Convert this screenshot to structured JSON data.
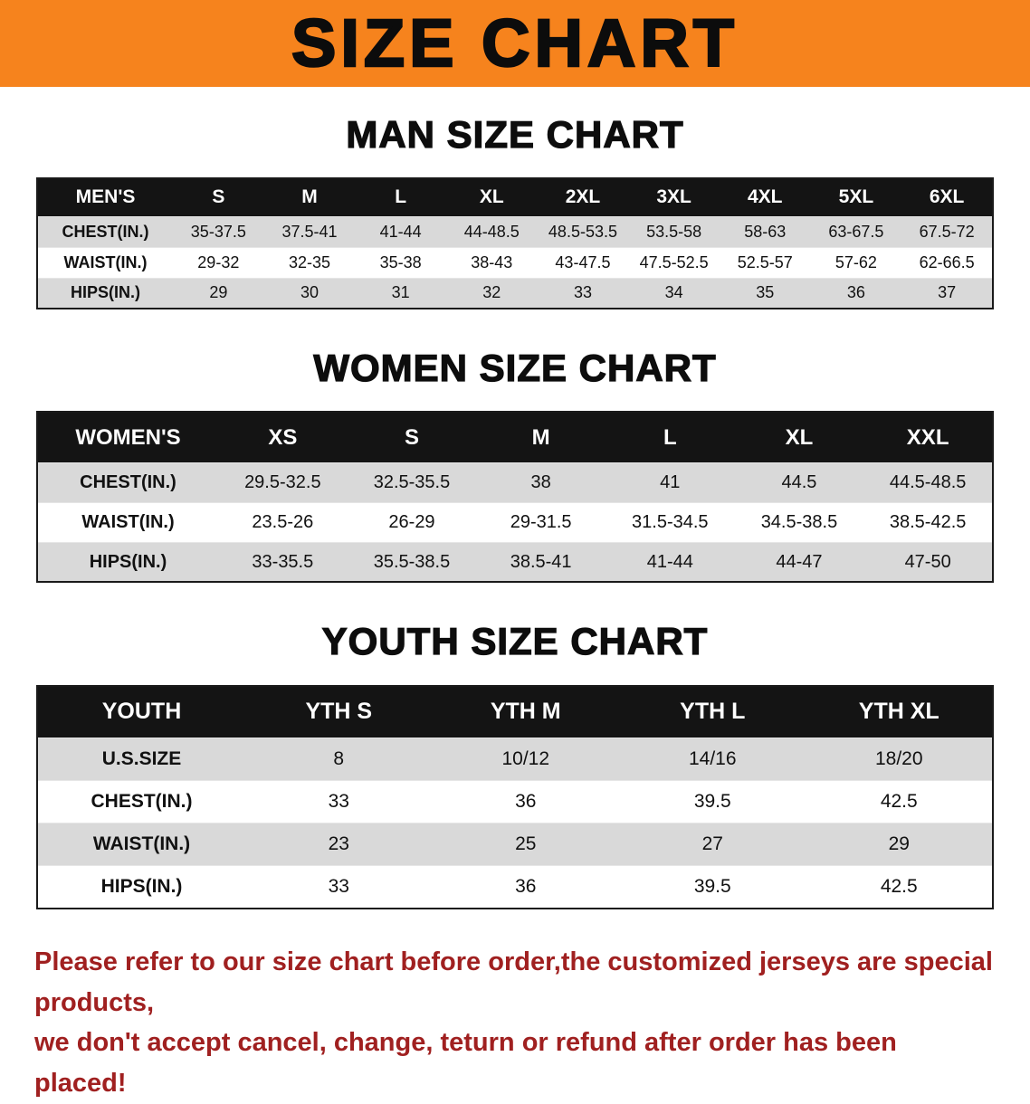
{
  "banner": {
    "title": "SIZE CHART"
  },
  "colors": {
    "banner_bg": "#f6831d",
    "header_bg": "#141414",
    "row_shade": "#d9d9d9",
    "footer_text": "#a02020"
  },
  "sections": [
    {
      "heading": "MAN SIZE CHART",
      "table": {
        "label": "MEN'S",
        "columns": [
          "S",
          "M",
          "L",
          "XL",
          "2XL",
          "3XL",
          "4XL",
          "5XL",
          "6XL"
        ],
        "rows": [
          {
            "label": "CHEST(IN.)",
            "values": [
              "35-37.5",
              "37.5-41",
              "41-44",
              "44-48.5",
              "48.5-53.5",
              "53.5-58",
              "58-63",
              "63-67.5",
              "67.5-72"
            ]
          },
          {
            "label": "WAIST(IN.)",
            "values": [
              "29-32",
              "32-35",
              "35-38",
              "38-43",
              "43-47.5",
              "47.5-52.5",
              "52.5-57",
              "57-62",
              "62-66.5"
            ]
          },
          {
            "label": "HIPS(IN.)",
            "values": [
              "29",
              "30",
              "31",
              "32",
              "33",
              "34",
              "35",
              "36",
              "37"
            ]
          }
        ]
      }
    },
    {
      "heading": "WOMEN SIZE CHART",
      "table": {
        "label": "WOMEN'S",
        "columns": [
          "XS",
          "S",
          "M",
          "L",
          "XL",
          "XXL"
        ],
        "rows": [
          {
            "label": "CHEST(IN.)",
            "values": [
              "29.5-32.5",
              "32.5-35.5",
              "38",
              "41",
              "44.5",
              "44.5-48.5"
            ]
          },
          {
            "label": "WAIST(IN.)",
            "values": [
              "23.5-26",
              "26-29",
              "29-31.5",
              "31.5-34.5",
              "34.5-38.5",
              "38.5-42.5"
            ]
          },
          {
            "label": "HIPS(IN.)",
            "values": [
              "33-35.5",
              "35.5-38.5",
              "38.5-41",
              "41-44",
              "44-47",
              "47-50"
            ]
          }
        ]
      }
    },
    {
      "heading": "YOUTH SIZE CHART",
      "table": {
        "label": "YOUTH",
        "columns": [
          "YTH S",
          "YTH M",
          "YTH L",
          "YTH XL"
        ],
        "rows": [
          {
            "label": "U.S.SIZE",
            "values": [
              "8",
              "10/12",
              "14/16",
              "18/20"
            ]
          },
          {
            "label": "CHEST(IN.)",
            "values": [
              "33",
              "36",
              "39.5",
              "42.5"
            ]
          },
          {
            "label": "WAIST(IN.)",
            "values": [
              "23",
              "25",
              "27",
              "29"
            ]
          },
          {
            "label": "HIPS(IN.)",
            "values": [
              "33",
              "36",
              "39.5",
              "42.5"
            ]
          }
        ]
      }
    }
  ],
  "footer": {
    "lines": [
      "Please refer to our size chart before order,the customized jerseys are special products,",
      "we don't accept cancel, change, teturn or refund after order has been placed!"
    ]
  }
}
